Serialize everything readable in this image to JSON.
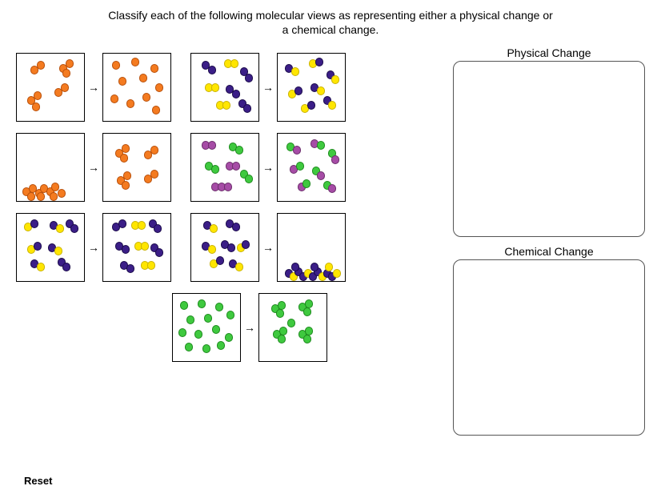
{
  "instruction": "Classify each of the following molecular views as representing either a physical change or a chemical change.",
  "labels": {
    "physical": "Physical Change",
    "chemical": "Chemical Change",
    "reset": "Reset",
    "arrow": "→"
  },
  "colors": {
    "orange": {
      "fill": "#f47b20",
      "stroke": "#b84f0a"
    },
    "yellow": {
      "fill": "#ffe600",
      "stroke": "#c9b200"
    },
    "blue": {
      "fill": "#3b1e87",
      "stroke": "#1a0a4a"
    },
    "green": {
      "fill": "#3fc93f",
      "stroke": "#1d8a1d"
    },
    "purple": {
      "fill": "#a64ca6",
      "stroke": "#6b2d6b"
    }
  },
  "atom_radius": 5.2,
  "rows": [
    {
      "indent": false,
      "pairs": [
        {
          "before": [
            {
              "c": "orange",
              "x": 22,
              "y": 20
            },
            {
              "c": "orange",
              "x": 30,
              "y": 14
            },
            {
              "c": "orange",
              "x": 58,
              "y": 18
            },
            {
              "c": "orange",
              "x": 66,
              "y": 12
            },
            {
              "c": "orange",
              "x": 62,
              "y": 24
            },
            {
              "c": "orange",
              "x": 18,
              "y": 58
            },
            {
              "c": "orange",
              "x": 26,
              "y": 52
            },
            {
              "c": "orange",
              "x": 24,
              "y": 66
            },
            {
              "c": "orange",
              "x": 52,
              "y": 48
            },
            {
              "c": "orange",
              "x": 60,
              "y": 42
            }
          ],
          "after": [
            {
              "c": "orange",
              "x": 16,
              "y": 14
            },
            {
              "c": "orange",
              "x": 40,
              "y": 10
            },
            {
              "c": "orange",
              "x": 64,
              "y": 18
            },
            {
              "c": "orange",
              "x": 24,
              "y": 34
            },
            {
              "c": "orange",
              "x": 50,
              "y": 30
            },
            {
              "c": "orange",
              "x": 70,
              "y": 42
            },
            {
              "c": "orange",
              "x": 14,
              "y": 56
            },
            {
              "c": "orange",
              "x": 34,
              "y": 62
            },
            {
              "c": "orange",
              "x": 54,
              "y": 54
            },
            {
              "c": "orange",
              "x": 66,
              "y": 70
            }
          ]
        },
        {
          "before": [
            {
              "c": "blue",
              "x": 18,
              "y": 14
            },
            {
              "c": "blue",
              "x": 26,
              "y": 20
            },
            {
              "c": "yellow",
              "x": 46,
              "y": 12
            },
            {
              "c": "yellow",
              "x": 54,
              "y": 12
            },
            {
              "c": "blue",
              "x": 66,
              "y": 22
            },
            {
              "c": "blue",
              "x": 72,
              "y": 30
            },
            {
              "c": "yellow",
              "x": 22,
              "y": 42
            },
            {
              "c": "yellow",
              "x": 30,
              "y": 42
            },
            {
              "c": "blue",
              "x": 48,
              "y": 44
            },
            {
              "c": "blue",
              "x": 56,
              "y": 50
            },
            {
              "c": "yellow",
              "x": 36,
              "y": 64
            },
            {
              "c": "yellow",
              "x": 44,
              "y": 64
            },
            {
              "c": "blue",
              "x": 64,
              "y": 62
            },
            {
              "c": "blue",
              "x": 70,
              "y": 68
            }
          ],
          "after": [
            {
              "c": "blue",
              "x": 14,
              "y": 18
            },
            {
              "c": "yellow",
              "x": 22,
              "y": 22
            },
            {
              "c": "yellow",
              "x": 44,
              "y": 12
            },
            {
              "c": "blue",
              "x": 52,
              "y": 10
            },
            {
              "c": "blue",
              "x": 66,
              "y": 26
            },
            {
              "c": "yellow",
              "x": 72,
              "y": 32
            },
            {
              "c": "yellow",
              "x": 18,
              "y": 50
            },
            {
              "c": "blue",
              "x": 26,
              "y": 46
            },
            {
              "c": "blue",
              "x": 46,
              "y": 42
            },
            {
              "c": "yellow",
              "x": 54,
              "y": 46
            },
            {
              "c": "yellow",
              "x": 34,
              "y": 68
            },
            {
              "c": "blue",
              "x": 42,
              "y": 64
            },
            {
              "c": "blue",
              "x": 62,
              "y": 58
            },
            {
              "c": "yellow",
              "x": 68,
              "y": 64
            }
          ]
        }
      ]
    },
    {
      "indent": false,
      "pairs": [
        {
          "before": [
            {
              "c": "orange",
              "x": 12,
              "y": 72
            },
            {
              "c": "orange",
              "x": 20,
              "y": 68
            },
            {
              "c": "orange",
              "x": 18,
              "y": 78
            },
            {
              "c": "orange",
              "x": 28,
              "y": 74
            },
            {
              "c": "orange",
              "x": 34,
              "y": 68
            },
            {
              "c": "orange",
              "x": 30,
              "y": 78
            },
            {
              "c": "orange",
              "x": 42,
              "y": 72
            },
            {
              "c": "orange",
              "x": 48,
              "y": 66
            },
            {
              "c": "orange",
              "x": 46,
              "y": 78
            },
            {
              "c": "orange",
              "x": 56,
              "y": 74
            }
          ],
          "after": [
            {
              "c": "orange",
              "x": 20,
              "y": 24
            },
            {
              "c": "orange",
              "x": 28,
              "y": 18
            },
            {
              "c": "orange",
              "x": 26,
              "y": 30
            },
            {
              "c": "orange",
              "x": 56,
              "y": 26
            },
            {
              "c": "orange",
              "x": 64,
              "y": 20
            },
            {
              "c": "orange",
              "x": 22,
              "y": 58
            },
            {
              "c": "orange",
              "x": 30,
              "y": 52
            },
            {
              "c": "orange",
              "x": 28,
              "y": 64
            },
            {
              "c": "orange",
              "x": 56,
              "y": 56
            },
            {
              "c": "orange",
              "x": 64,
              "y": 50
            }
          ]
        },
        {
          "before": [
            {
              "c": "purple",
              "x": 18,
              "y": 14
            },
            {
              "c": "purple",
              "x": 26,
              "y": 14
            },
            {
              "c": "green",
              "x": 52,
              "y": 16
            },
            {
              "c": "green",
              "x": 60,
              "y": 20
            },
            {
              "c": "green",
              "x": 22,
              "y": 40
            },
            {
              "c": "green",
              "x": 30,
              "y": 44
            },
            {
              "c": "purple",
              "x": 48,
              "y": 40
            },
            {
              "c": "purple",
              "x": 56,
              "y": 40
            },
            {
              "c": "green",
              "x": 66,
              "y": 50
            },
            {
              "c": "green",
              "x": 72,
              "y": 56
            },
            {
              "c": "purple",
              "x": 30,
              "y": 66
            },
            {
              "c": "purple",
              "x": 38,
              "y": 66
            },
            {
              "c": "purple",
              "x": 46,
              "y": 66
            }
          ],
          "after": [
            {
              "c": "green",
              "x": 16,
              "y": 16
            },
            {
              "c": "purple",
              "x": 24,
              "y": 20
            },
            {
              "c": "purple",
              "x": 46,
              "y": 12
            },
            {
              "c": "green",
              "x": 54,
              "y": 14
            },
            {
              "c": "green",
              "x": 68,
              "y": 24
            },
            {
              "c": "purple",
              "x": 72,
              "y": 32
            },
            {
              "c": "purple",
              "x": 20,
              "y": 44
            },
            {
              "c": "green",
              "x": 28,
              "y": 40
            },
            {
              "c": "green",
              "x": 48,
              "y": 46
            },
            {
              "c": "purple",
              "x": 54,
              "y": 52
            },
            {
              "c": "purple",
              "x": 30,
              "y": 66
            },
            {
              "c": "green",
              "x": 36,
              "y": 62
            },
            {
              "c": "green",
              "x": 62,
              "y": 64
            },
            {
              "c": "purple",
              "x": 68,
              "y": 68
            }
          ]
        }
      ]
    },
    {
      "indent": false,
      "pairs": [
        {
          "before": [
            {
              "c": "yellow",
              "x": 14,
              "y": 16
            },
            {
              "c": "blue",
              "x": 22,
              "y": 12
            },
            {
              "c": "blue",
              "x": 46,
              "y": 14
            },
            {
              "c": "yellow",
              "x": 54,
              "y": 18
            },
            {
              "c": "blue",
              "x": 66,
              "y": 12
            },
            {
              "c": "blue",
              "x": 72,
              "y": 18
            },
            {
              "c": "yellow",
              "x": 18,
              "y": 44
            },
            {
              "c": "blue",
              "x": 26,
              "y": 40
            },
            {
              "c": "blue",
              "x": 44,
              "y": 42
            },
            {
              "c": "yellow",
              "x": 52,
              "y": 46
            },
            {
              "c": "blue",
              "x": 22,
              "y": 62
            },
            {
              "c": "yellow",
              "x": 30,
              "y": 66
            },
            {
              "c": "blue",
              "x": 56,
              "y": 60
            },
            {
              "c": "blue",
              "x": 62,
              "y": 66
            }
          ],
          "after": [
            {
              "c": "blue",
              "x": 16,
              "y": 16
            },
            {
              "c": "blue",
              "x": 24,
              "y": 12
            },
            {
              "c": "yellow",
              "x": 40,
              "y": 14
            },
            {
              "c": "yellow",
              "x": 48,
              "y": 14
            },
            {
              "c": "blue",
              "x": 62,
              "y": 12
            },
            {
              "c": "blue",
              "x": 68,
              "y": 18
            },
            {
              "c": "blue",
              "x": 20,
              "y": 40
            },
            {
              "c": "blue",
              "x": 28,
              "y": 44
            },
            {
              "c": "yellow",
              "x": 44,
              "y": 40
            },
            {
              "c": "yellow",
              "x": 52,
              "y": 40
            },
            {
              "c": "blue",
              "x": 64,
              "y": 42
            },
            {
              "c": "blue",
              "x": 70,
              "y": 48
            },
            {
              "c": "blue",
              "x": 26,
              "y": 64
            },
            {
              "c": "blue",
              "x": 34,
              "y": 68
            },
            {
              "c": "yellow",
              "x": 52,
              "y": 64
            },
            {
              "c": "yellow",
              "x": 60,
              "y": 64
            }
          ]
        },
        {
          "before": [
            {
              "c": "blue",
              "x": 20,
              "y": 14
            },
            {
              "c": "yellow",
              "x": 28,
              "y": 18
            },
            {
              "c": "blue",
              "x": 48,
              "y": 12
            },
            {
              "c": "blue",
              "x": 56,
              "y": 16
            },
            {
              "c": "blue",
              "x": 18,
              "y": 40
            },
            {
              "c": "yellow",
              "x": 26,
              "y": 44
            },
            {
              "c": "blue",
              "x": 42,
              "y": 38
            },
            {
              "c": "blue",
              "x": 50,
              "y": 42
            },
            {
              "c": "yellow",
              "x": 62,
              "y": 42
            },
            {
              "c": "blue",
              "x": 68,
              "y": 38
            },
            {
              "c": "yellow",
              "x": 28,
              "y": 62
            },
            {
              "c": "blue",
              "x": 36,
              "y": 58
            },
            {
              "c": "blue",
              "x": 52,
              "y": 62
            },
            {
              "c": "yellow",
              "x": 60,
              "y": 66
            }
          ],
          "after": [
            {
              "c": "blue",
              "x": 14,
              "y": 74
            },
            {
              "c": "yellow",
              "x": 20,
              "y": 78
            },
            {
              "c": "blue",
              "x": 26,
              "y": 72
            },
            {
              "c": "blue",
              "x": 32,
              "y": 78
            },
            {
              "c": "yellow",
              "x": 38,
              "y": 74
            },
            {
              "c": "blue",
              "x": 44,
              "y": 78
            },
            {
              "c": "blue",
              "x": 50,
              "y": 72
            },
            {
              "c": "yellow",
              "x": 56,
              "y": 78
            },
            {
              "c": "blue",
              "x": 62,
              "y": 74
            },
            {
              "c": "blue",
              "x": 68,
              "y": 78
            },
            {
              "c": "yellow",
              "x": 74,
              "y": 74
            },
            {
              "c": "blue",
              "x": 22,
              "y": 66
            },
            {
              "c": "blue",
              "x": 46,
              "y": 66
            },
            {
              "c": "yellow",
              "x": 64,
              "y": 66
            }
          ]
        }
      ]
    },
    {
      "indent": true,
      "pairs": [
        {
          "before": [
            {
              "c": "green",
              "x": 14,
              "y": 14
            },
            {
              "c": "green",
              "x": 36,
              "y": 12
            },
            {
              "c": "green",
              "x": 58,
              "y": 16
            },
            {
              "c": "green",
              "x": 72,
              "y": 26
            },
            {
              "c": "green",
              "x": 22,
              "y": 32
            },
            {
              "c": "green",
              "x": 44,
              "y": 30
            },
            {
              "c": "green",
              "x": 12,
              "y": 48
            },
            {
              "c": "green",
              "x": 32,
              "y": 50
            },
            {
              "c": "green",
              "x": 54,
              "y": 44
            },
            {
              "c": "green",
              "x": 70,
              "y": 54
            },
            {
              "c": "green",
              "x": 20,
              "y": 66
            },
            {
              "c": "green",
              "x": 42,
              "y": 68
            },
            {
              "c": "green",
              "x": 60,
              "y": 64
            }
          ],
          "after": [
            {
              "c": "green",
              "x": 20,
              "y": 18
            },
            {
              "c": "green",
              "x": 28,
              "y": 14
            },
            {
              "c": "green",
              "x": 26,
              "y": 24
            },
            {
              "c": "green",
              "x": 54,
              "y": 16
            },
            {
              "c": "green",
              "x": 62,
              "y": 12
            },
            {
              "c": "green",
              "x": 60,
              "y": 22
            },
            {
              "c": "green",
              "x": 22,
              "y": 50
            },
            {
              "c": "green",
              "x": 30,
              "y": 46
            },
            {
              "c": "green",
              "x": 28,
              "y": 56
            },
            {
              "c": "green",
              "x": 54,
              "y": 50
            },
            {
              "c": "green",
              "x": 62,
              "y": 46
            },
            {
              "c": "green",
              "x": 60,
              "y": 56
            },
            {
              "c": "green",
              "x": 40,
              "y": 36
            }
          ]
        }
      ]
    }
  ]
}
